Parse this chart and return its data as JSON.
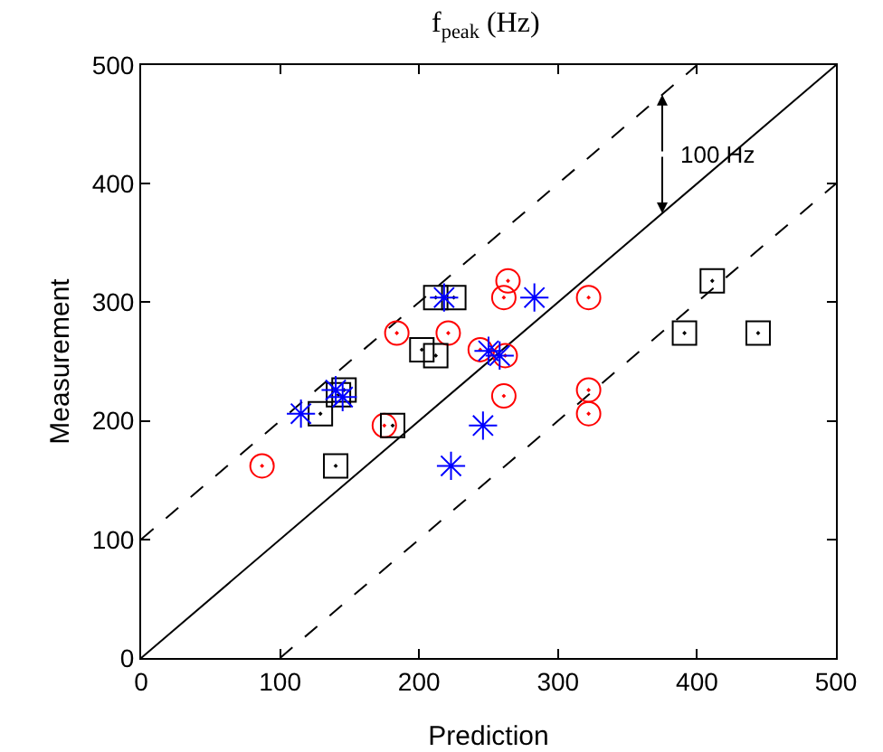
{
  "chart_data": {
    "type": "scatter",
    "title": "f$_{peak}$ (Hz)",
    "xlabel": "Prediction",
    "ylabel": "Measurement",
    "xlim": [
      0,
      500
    ],
    "ylim": [
      0,
      500
    ],
    "xticks": [
      0,
      100,
      200,
      300,
      400,
      500
    ],
    "yticks": [
      0,
      100,
      200,
      300,
      400,
      500
    ],
    "series": [
      {
        "type": "line",
        "color": "#000000",
        "line_style": "solid",
        "marker": "none",
        "x": [
          0,
          500
        ],
        "values": [
          0,
          500
        ]
      },
      {
        "type": "line",
        "color": "#000000",
        "line_style": "dashed",
        "marker": "none",
        "x": [
          0,
          400
        ],
        "values": [
          100,
          500
        ]
      },
      {
        "type": "line",
        "color": "#000000",
        "line_style": "dashed",
        "marker": "none",
        "x": [
          100,
          500
        ],
        "values": [
          0,
          400
        ]
      },
      {
        "type": "scatter",
        "color": "#ff0000",
        "marker": "circle",
        "x": [
          87,
          175,
          184,
          221,
          244,
          262,
          261,
          264,
          261,
          322,
          322,
          322
        ],
        "values": [
          162,
          196,
          274,
          274,
          260,
          255,
          304,
          318,
          221,
          304,
          226,
          206
        ]
      },
      {
        "type": "scatter",
        "color": "#000000",
        "marker": "square",
        "x": [
          140,
          129,
          142,
          146,
          181,
          202,
          212,
          212,
          225,
          411,
          391,
          444
        ],
        "values": [
          162,
          206,
          222,
          226,
          196,
          260,
          255,
          304,
          304,
          318,
          274,
          274
        ]
      },
      {
        "type": "scatter",
        "color": "#0000ff",
        "marker": "cross",
        "x": [
          115,
          140,
          145,
          218,
          250,
          258,
          283,
          246,
          223
        ],
        "values": [
          206,
          226,
          220,
          304,
          259,
          255,
          304,
          196,
          162
        ]
      }
    ],
    "annotations": [
      {
        "text": "100 Hz",
        "x": 375,
        "y": 475
      }
    ]
  }
}
